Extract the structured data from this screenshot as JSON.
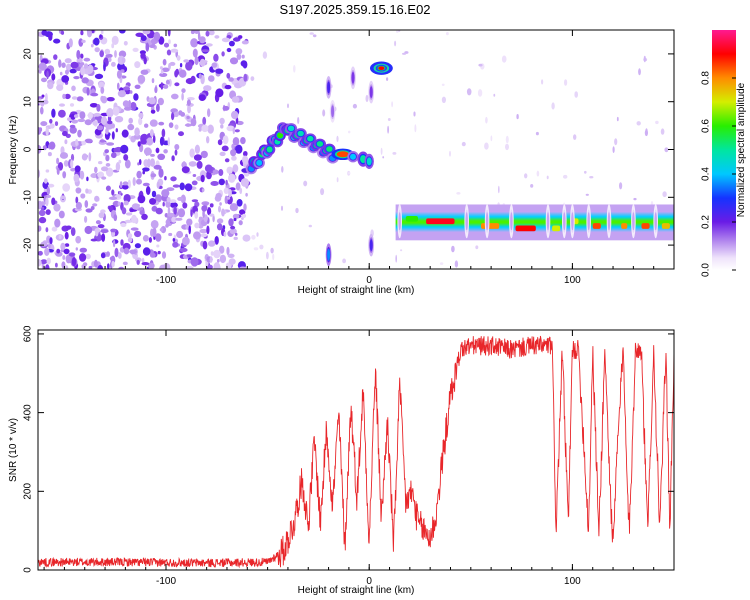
{
  "title": "S197.2025.359.15.16.E02",
  "colors": {
    "background": "#ffffff",
    "axis": "#000000",
    "snr_line": "#e8262a"
  },
  "chart_data": [
    {
      "type": "heatmap",
      "xlabel": "Height of straight line (km)",
      "ylabel": "Frequency (Hz)",
      "xlim": [
        -163,
        150
      ],
      "ylim": [
        -25,
        25
      ],
      "xticks": [
        -100,
        0,
        100
      ],
      "yticks": [
        -20,
        -10,
        0,
        10,
        20
      ],
      "colorbar": {
        "label": "Normalized spectral amplitude",
        "range": [
          0,
          1
        ],
        "ticks": [
          "0.0",
          "0.2",
          "0.4",
          "0.6",
          "0.8"
        ]
      },
      "features": [
        {
          "name": "scattered noise",
          "x_range": [
            -163,
            -60
          ],
          "freq_range": [
            -25,
            25
          ],
          "amplitude": 0.2
        },
        {
          "name": "rising arc",
          "x_range": [
            -58,
            -40
          ],
          "freq_range": [
            -5,
            8
          ],
          "amplitude": 0.6
        },
        {
          "name": "descending arc",
          "x_range": [
            -40,
            -18
          ],
          "freq_range": [
            -2,
            5
          ],
          "amplitude": 0.55
        },
        {
          "name": "central blob",
          "x_range": [
            -18,
            2
          ],
          "freq_range": [
            -3,
            1
          ],
          "amplitude": 0.75
        },
        {
          "name": "high tone",
          "x_range": [
            2,
            12
          ],
          "freq_range": [
            15,
            20
          ],
          "amplitude": 0.8
        },
        {
          "name": "steady band",
          "x_range": [
            13,
            150
          ],
          "freq_range": [
            -17,
            -13
          ],
          "amplitude": 0.85
        }
      ]
    },
    {
      "type": "line",
      "xlabel": "Height of straight line (km)",
      "ylabel": "SNR (10 * v/v)",
      "xlim": [
        -163,
        150
      ],
      "ylim": [
        0,
        610
      ],
      "xticks": [
        -100,
        0,
        100
      ],
      "yticks": [
        0,
        200,
        400,
        600
      ],
      "series": [
        {
          "name": "SNR",
          "x": [
            -163,
            -120,
            -80,
            -50,
            -42,
            -37,
            -33,
            -30,
            -27,
            -24,
            -21,
            -18,
            -15,
            -12,
            -9,
            -6,
            -3,
            0,
            3,
            6,
            9,
            12,
            15,
            18,
            21,
            24,
            27,
            30,
            33,
            36,
            40,
            45,
            50,
            60,
            70,
            80,
            88,
            90,
            92,
            95,
            98,
            100,
            103,
            108,
            110,
            113,
            116,
            118,
            120,
            122,
            125,
            128,
            131,
            134,
            137,
            140,
            143,
            146,
            148,
            150
          ],
          "values": [
            20,
            20,
            18,
            20,
            50,
            120,
            230,
            110,
            330,
            120,
            360,
            160,
            400,
            60,
            420,
            180,
            460,
            70,
            510,
            130,
            380,
            60,
            470,
            170,
            200,
            120,
            100,
            80,
            140,
            280,
            440,
            560,
            570,
            570,
            560,
            570,
            570,
            570,
            100,
            560,
            110,
            560,
            560,
            100,
            560,
            90,
            560,
            280,
            50,
            300,
            560,
            90,
            560,
            560,
            90,
            560,
            100,
            560,
            100,
            540
          ]
        }
      ]
    }
  ]
}
